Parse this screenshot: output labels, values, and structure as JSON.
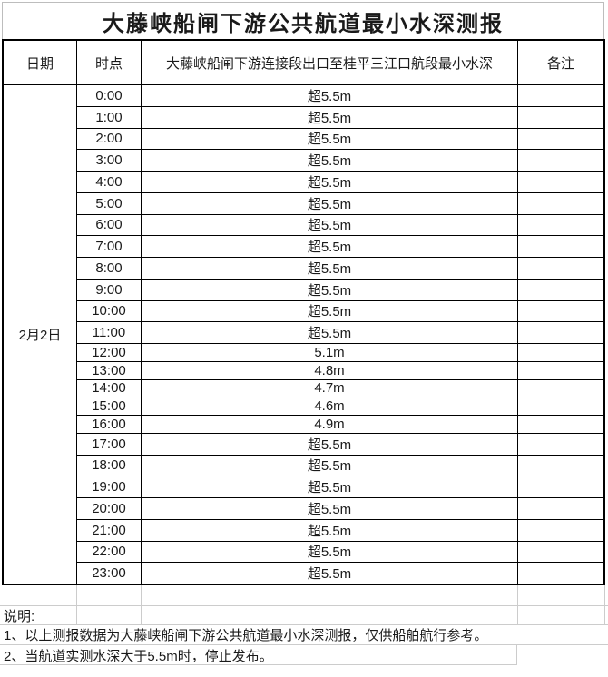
{
  "page_title": "大藤峡船闸下游公共航道最小水深测报",
  "table": {
    "headers": {
      "date": "日期",
      "time": "时点",
      "depth": "大藤峡船闸下游连接段出口至桂平三江口航段最小水深",
      "remark": "备注"
    },
    "date_cell": "2月2日",
    "rows": [
      {
        "time": "0:00",
        "depth": "超5.5m",
        "remark": ""
      },
      {
        "time": "1:00",
        "depth": "超5.5m",
        "remark": ""
      },
      {
        "time": "2:00",
        "depth": "超5.5m",
        "remark": ""
      },
      {
        "time": "3:00",
        "depth": "超5.5m",
        "remark": ""
      },
      {
        "time": "4:00",
        "depth": "超5.5m",
        "remark": ""
      },
      {
        "time": "5:00",
        "depth": "超5.5m",
        "remark": ""
      },
      {
        "time": "6:00",
        "depth": "超5.5m",
        "remark": ""
      },
      {
        "time": "7:00",
        "depth": "超5.5m",
        "remark": ""
      },
      {
        "time": "8:00",
        "depth": "超5.5m",
        "remark": ""
      },
      {
        "time": "9:00",
        "depth": "超5.5m",
        "remark": ""
      },
      {
        "time": "10:00",
        "depth": "超5.5m",
        "remark": ""
      },
      {
        "time": "11:00",
        "depth": "超5.5m",
        "remark": ""
      },
      {
        "time": "12:00",
        "depth": "5.1m",
        "remark": ""
      },
      {
        "time": "13:00",
        "depth": "4.8m",
        "remark": ""
      },
      {
        "time": "14:00",
        "depth": "4.7m",
        "remark": ""
      },
      {
        "time": "15:00",
        "depth": "4.6m",
        "remark": ""
      },
      {
        "time": "16:00",
        "depth": "4.9m",
        "remark": ""
      },
      {
        "time": "17:00",
        "depth": "超5.5m",
        "remark": ""
      },
      {
        "time": "18:00",
        "depth": "超5.5m",
        "remark": ""
      },
      {
        "time": "19:00",
        "depth": "超5.5m",
        "remark": ""
      },
      {
        "time": "20:00",
        "depth": "超5.5m",
        "remark": ""
      },
      {
        "time": "21:00",
        "depth": "超5.5m",
        "remark": ""
      },
      {
        "time": "22:00",
        "depth": "超5.5m",
        "remark": ""
      },
      {
        "time": "23:00",
        "depth": "超5.5m",
        "remark": ""
      }
    ]
  },
  "notes": {
    "heading": "说明:",
    "items": [
      "1、以上测报数据为大藤峡船闸下游公共航道最小水深测报，仅供船舶航行参考。",
      "2、当航道实测水深大于5.5m时，停止发布。"
    ]
  },
  "colors": {
    "table_border": "#000000",
    "gridline": "#cccccc",
    "text": "#1a1a1a",
    "background": "#ffffff"
  }
}
